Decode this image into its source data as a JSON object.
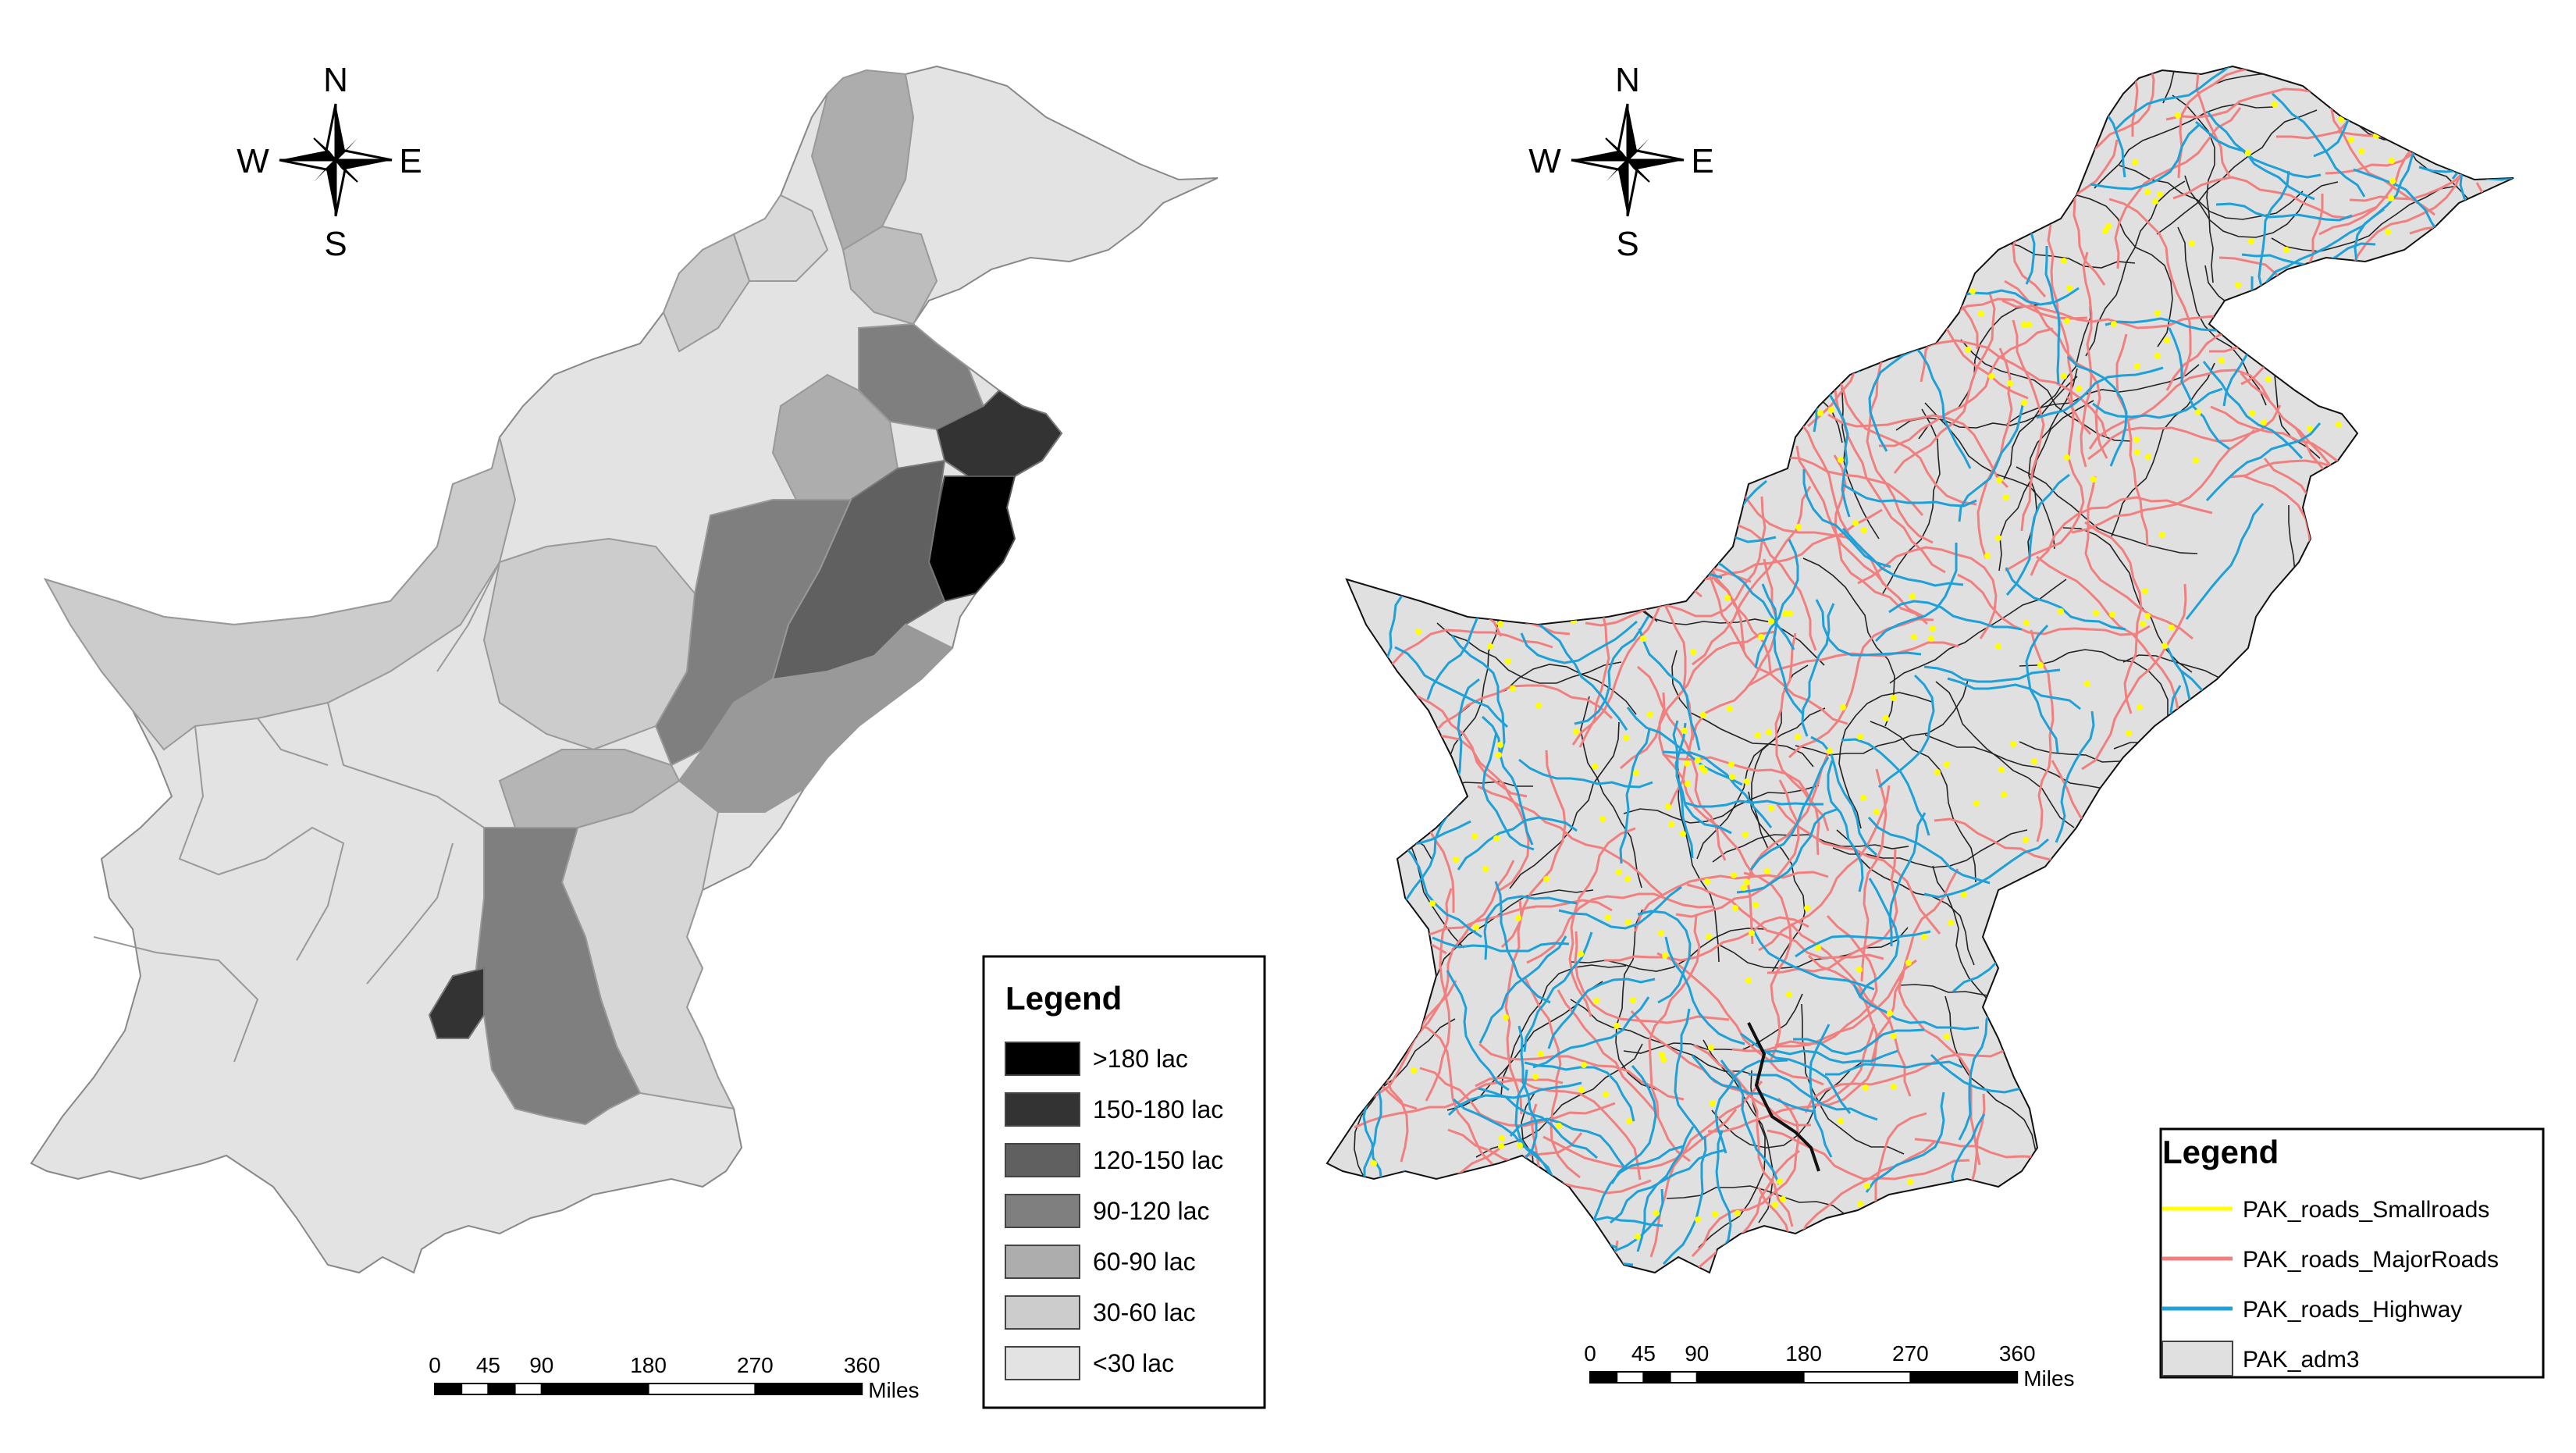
{
  "compass": {
    "north": "N",
    "south": "S",
    "east": "E",
    "west": "W"
  },
  "left_map": {
    "legend": {
      "title": "Legend",
      "items": [
        {
          "label": ">180 lac",
          "color": "#000000"
        },
        {
          "label": "150-180 lac",
          "color": "#333333"
        },
        {
          "label": "120-150 lac",
          "color": "#606060"
        },
        {
          "label": "90-120 lac",
          "color": "#7f7f7f"
        },
        {
          "label": "60-90 lac",
          "color": "#adadad"
        },
        {
          "label": "30-60 lac",
          "color": "#cccccc"
        },
        {
          "label": "<30 lac",
          "color": "#e3e3e3"
        }
      ]
    },
    "scale_bar": {
      "ticks": [
        "0",
        "45",
        "90",
        "180",
        "270",
        "360"
      ],
      "unit": "Miles"
    }
  },
  "right_map": {
    "legend": {
      "title": "Legend",
      "items": [
        {
          "label": "PAK_roads_Smallroads",
          "color": "#ffff00",
          "kind": "line"
        },
        {
          "label": "PAK_roads_MajorRoads",
          "color": "#f08080",
          "kind": "line"
        },
        {
          "label": "PAK_roads_Highway",
          "color": "#1fa0d6",
          "kind": "line"
        },
        {
          "label": "PAK_adm3",
          "color": "#e0e0e0",
          "kind": "fill"
        }
      ]
    },
    "scale_bar": {
      "ticks": [
        "0",
        "45",
        "90",
        "180",
        "270",
        "360"
      ],
      "unit": "Miles"
    }
  }
}
